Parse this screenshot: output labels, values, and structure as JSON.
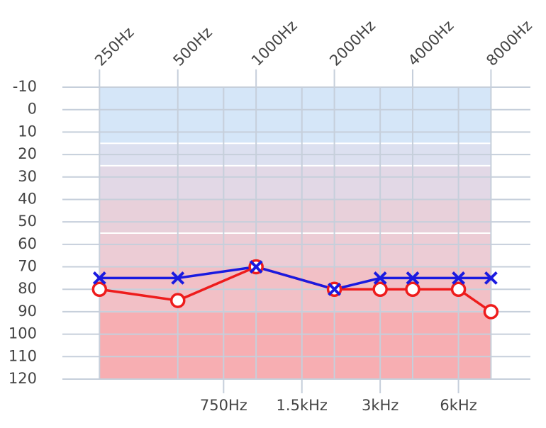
{
  "chart_data": {
    "type": "line",
    "x": [
      250,
      500,
      1000,
      2000,
      3000,
      4000,
      6000,
      8000
    ],
    "series": [
      {
        "color": "#ee1c1c",
        "marker": "circle",
        "values": [
          80,
          85,
          70,
          80,
          80,
          80,
          80,
          90
        ]
      },
      {
        "color": "#1a1ae0",
        "marker": "cross",
        "values": [
          75,
          75,
          70,
          80,
          75,
          75,
          75,
          75
        ]
      }
    ],
    "xscale": "log",
    "xlim": [
      180,
      11200
    ],
    "xticks": [
      {
        "value": 250,
        "label": "250Hz"
      },
      {
        "value": 500,
        "label": "500Hz"
      },
      {
        "value": 1000,
        "label": "1000Hz"
      },
      {
        "value": 2000,
        "label": "2000Hz"
      },
      {
        "value": 4000,
        "label": "4000Hz"
      },
      {
        "value": 8000,
        "label": "8000Hz"
      }
    ],
    "xticks_minor": [
      {
        "value": 750,
        "label": "750Hz"
      },
      {
        "value": 1500,
        "label": "1.5kHz"
      },
      {
        "value": 3000,
        "label": "3kHz"
      },
      {
        "value": 6000,
        "label": "6kHz"
      }
    ],
    "ylim": [
      -10,
      120
    ],
    "y_inverted": true,
    "yticks": [
      -10,
      0,
      10,
      20,
      30,
      40,
      50,
      60,
      70,
      80,
      90,
      100,
      110,
      120
    ],
    "grid": true,
    "bands": [
      {
        "from": -10,
        "to": 15,
        "color": "#d5e6f8"
      },
      {
        "from": 15,
        "to": 25,
        "color": "#dce0f0"
      },
      {
        "from": 25,
        "to": 40,
        "color": "#e2d8e6"
      },
      {
        "from": 40,
        "to": 55,
        "color": "#e8d0da"
      },
      {
        "from": 55,
        "to": 70,
        "color": "#ecccd5"
      },
      {
        "from": 70,
        "to": 90,
        "color": "#f2c0c6"
      },
      {
        "from": 90,
        "to": 120,
        "color": "#f7aeb2"
      }
    ]
  }
}
